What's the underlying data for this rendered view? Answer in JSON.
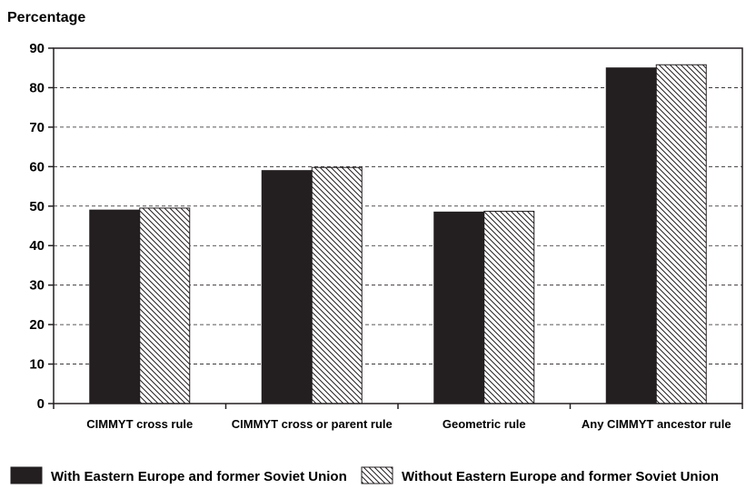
{
  "chart_data": {
    "type": "bar",
    "title": "",
    "xlabel": "",
    "ylabel": "Percentage",
    "ylim": [
      0,
      90
    ],
    "yticks": [
      0,
      10,
      20,
      30,
      40,
      50,
      60,
      70,
      80,
      90
    ],
    "grid": true,
    "legend_position": "bottom",
    "categories": [
      "CIMMYT cross rule",
      "CIMMYT cross or parent rule",
      "Geometric rule",
      "Any CIMMYT ancestor rule"
    ],
    "series": [
      {
        "name": "With Eastern Europe and former Soviet Union",
        "values": [
          49,
          59,
          48.5,
          85
        ],
        "fill": "solid",
        "color": "#231f20"
      },
      {
        "name": "Without Eastern Europe and former Soviet Union",
        "values": [
          49.5,
          59.8,
          48.7,
          85.8
        ],
        "fill": "hatched",
        "color": "#231f20"
      }
    ]
  }
}
